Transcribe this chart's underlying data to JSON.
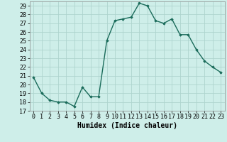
{
  "x": [
    0,
    1,
    2,
    3,
    4,
    5,
    6,
    7,
    8,
    9,
    10,
    11,
    12,
    13,
    14,
    15,
    16,
    17,
    18,
    19,
    20,
    21,
    22,
    23
  ],
  "y": [
    20.8,
    19.0,
    18.2,
    18.0,
    18.0,
    17.5,
    19.7,
    18.6,
    18.6,
    25.0,
    27.3,
    27.5,
    27.7,
    29.3,
    29.0,
    27.3,
    27.0,
    27.5,
    25.7,
    25.7,
    24.0,
    22.7,
    22.0,
    21.4
  ],
  "line_color": "#1a6b5a",
  "marker": "D",
  "marker_size": 1.8,
  "bg_color": "#ceeee9",
  "grid_color": "#aed4ce",
  "xlabel": "Humidex (Indice chaleur)",
  "ylim": [
    17,
    29.5
  ],
  "xlim": [
    -0.5,
    23.5
  ],
  "yticks": [
    17,
    18,
    19,
    20,
    21,
    22,
    23,
    24,
    25,
    26,
    27,
    28,
    29
  ],
  "xticks": [
    0,
    1,
    2,
    3,
    4,
    5,
    6,
    7,
    8,
    9,
    10,
    11,
    12,
    13,
    14,
    15,
    16,
    17,
    18,
    19,
    20,
    21,
    22,
    23
  ],
  "xlabel_fontsize": 7.0,
  "tick_fontsize": 6.0,
  "line_width": 1.0
}
